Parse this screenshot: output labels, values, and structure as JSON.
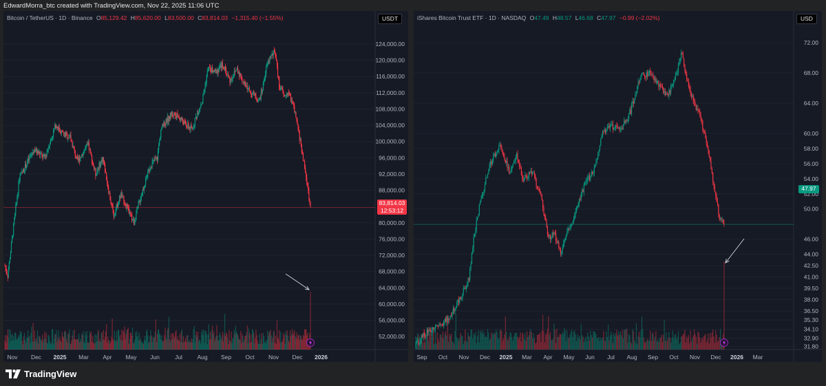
{
  "header": {
    "text": "EdwardMorra_btc created with TradingView.com, Nov 22, 2025 11:06 UTC"
  },
  "footer": {
    "brand": "TradingView",
    "logo_icon": "tradingview-logo-icon"
  },
  "colors": {
    "bg": "#161a25",
    "up": "#089981",
    "down": "#f23645",
    "grid": "#1f2330",
    "text": "#b2b5be",
    "last_red": "#f23645",
    "last_green": "#089981"
  },
  "left": {
    "symbol": "Bitcoin / TetherUS · 1D · Binance",
    "open_label": "O",
    "open": "85,129.42",
    "high_label": "H",
    "high": "85,620.00",
    "low_label": "L",
    "low": "83,500.00",
    "close_label": "C",
    "close": "83,814.03",
    "change": "−1,315.40 (−1.55%)",
    "currency": "USDT",
    "last_price": "83,814.03",
    "countdown": "12:53:12"
  },
  "right": {
    "symbol": "iShares Bitcoin Trust ETF · 1D · NASDAQ",
    "open_label": "O",
    "open": "47.49",
    "high_label": "H",
    "high": "48.57",
    "low_label": "L",
    "low": "46.68",
    "close_label": "C",
    "close": "47.97",
    "change": "−0.99 (−2.02%)",
    "currency": "USD",
    "last_price": "47.97"
  },
  "chart_data": [
    {
      "type": "candlestick",
      "title": "Bitcoin / TetherUS · 1D · Binance",
      "ylabel": "USDT",
      "ylim": [
        48800,
        128400
      ],
      "y_ticks": [
        "124,000.00",
        "120,000.00",
        "116,000.00",
        "112,000.00",
        "108,000.00",
        "104,000.00",
        "100,000.00",
        "96,000.00",
        "92,000.00",
        "88,000.00",
        "80,000.00",
        "76,000.00",
        "72,000.00",
        "68,000.00",
        "64,000.00",
        "60,000.00",
        "56,000.00",
        "52,000.00"
      ],
      "x_ticks": [
        "Nov",
        "Dec",
        "2025",
        "Mar",
        "Apr",
        "May",
        "Jun",
        "Jul",
        "Aug",
        "Sep",
        "Oct",
        "Nov",
        "Dec",
        "2026"
      ],
      "anchors": [
        [
          0,
          69500
        ],
        [
          4,
          67000
        ],
        [
          10,
          76000
        ],
        [
          20,
          91000
        ],
        [
          40,
          98000
        ],
        [
          55,
          96000
        ],
        [
          70,
          104000
        ],
        [
          80,
          102000
        ],
        [
          90,
          101000
        ],
        [
          100,
          95000
        ],
        [
          110,
          98000
        ],
        [
          115,
          99000
        ],
        [
          125,
          92000
        ],
        [
          135,
          96000
        ],
        [
          145,
          86000
        ],
        [
          150,
          82000
        ],
        [
          160,
          87000
        ],
        [
          170,
          83000
        ],
        [
          178,
          80000
        ],
        [
          185,
          85000
        ],
        [
          200,
          94000
        ],
        [
          210,
          96000
        ],
        [
          215,
          103000
        ],
        [
          230,
          107000
        ],
        [
          240,
          106000
        ],
        [
          250,
          104000
        ],
        [
          258,
          103000
        ],
        [
          265,
          107000
        ],
        [
          272,
          110000
        ],
        [
          280,
          118000
        ],
        [
          290,
          117000
        ],
        [
          300,
          119000
        ],
        [
          310,
          115000
        ],
        [
          320,
          118000
        ],
        [
          330,
          114000
        ],
        [
          340,
          112000
        ],
        [
          350,
          110000
        ],
        [
          355,
          113000
        ],
        [
          360,
          118000
        ],
        [
          366,
          121000
        ],
        [
          372,
          122000
        ],
        [
          378,
          114000
        ],
        [
          385,
          111000
        ],
        [
          390,
          112000
        ],
        [
          396,
          110000
        ],
        [
          403,
          104000
        ],
        [
          410,
          97000
        ],
        [
          416,
          90000
        ],
        [
          421,
          83814
        ]
      ],
      "volume_note": "Volume spike on latest bar, annotated with arrow"
    },
    {
      "type": "candlestick",
      "title": "iShares Bitcoin Trust ETF · 1D · NASDAQ",
      "ylabel": "USD",
      "ylim": [
        31.4,
        74.2
      ],
      "y_ticks": [
        "72.00",
        "68.00",
        "64.00",
        "60.00",
        "58.00",
        "56.00",
        "54.00",
        "52.00",
        "50.00",
        "46.00",
        "44.00",
        "42.50",
        "41.00",
        "39.50",
        "38.00",
        "36.50",
        "35.30",
        "34.10",
        "32.90",
        "31.80"
      ],
      "x_ticks": [
        "Sep",
        "Oct",
        "Nov",
        "Dec",
        "2025",
        "Mar",
        "Apr",
        "May",
        "Jun",
        "Jul",
        "Aug",
        "Sep",
        "Oct",
        "Nov",
        "Dec",
        "2026",
        "Mar"
      ],
      "anchors": [
        [
          0,
          32.0
        ],
        [
          10,
          33.5
        ],
        [
          20,
          34.3
        ],
        [
          30,
          35.0
        ],
        [
          40,
          36.4
        ],
        [
          50,
          38.8
        ],
        [
          57,
          41.0
        ],
        [
          63,
          47.0
        ],
        [
          70,
          51.5
        ],
        [
          80,
          56.0
        ],
        [
          90,
          58.5
        ],
        [
          100,
          55.0
        ],
        [
          108,
          57.0
        ],
        [
          115,
          54.0
        ],
        [
          125,
          55.0
        ],
        [
          135,
          51.0
        ],
        [
          142,
          46.0
        ],
        [
          148,
          47.0
        ],
        [
          155,
          44.0
        ],
        [
          162,
          47.0
        ],
        [
          170,
          49.0
        ],
        [
          180,
          53.0
        ],
        [
          190,
          55.0
        ],
        [
          200,
          60.0
        ],
        [
          210,
          61.0
        ],
        [
          220,
          60.5
        ],
        [
          230,
          63.0
        ],
        [
          240,
          67.5
        ],
        [
          250,
          68.0
        ],
        [
          260,
          66.5
        ],
        [
          270,
          65.0
        ],
        [
          280,
          68.5
        ],
        [
          285,
          71.0
        ],
        [
          290,
          67.0
        ],
        [
          300,
          63.5
        ],
        [
          305,
          62.0
        ],
        [
          310,
          59.5
        ],
        [
          315,
          56.0
        ],
        [
          320,
          52.0
        ],
        [
          325,
          49.0
        ],
        [
          330,
          47.97
        ]
      ],
      "volume_note": "Volume spike on latest bar, annotated with arrow"
    }
  ]
}
